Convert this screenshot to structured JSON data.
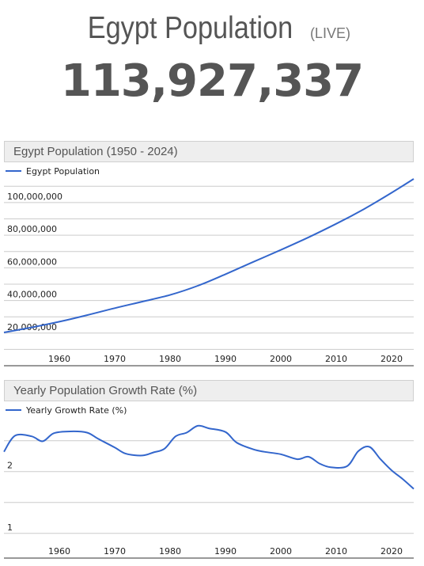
{
  "header": {
    "title": "Egypt Population",
    "live_label": "(LIVE)",
    "counter": "113,927,337"
  },
  "charts": {
    "population": {
      "heading": "Egypt Population (1950 - 2024)"
    },
    "growth": {
      "heading": "Yearly Population Growth Rate (%)"
    }
  },
  "colors": {
    "line": "#3366cc",
    "grid": "#cccccc",
    "header_bg": "#eeeeee"
  },
  "chart_data": [
    {
      "type": "line",
      "title": "Egypt Population (1950 - 2024)",
      "legend": "top-left",
      "grid": true,
      "x_tick_labels": [
        "1960",
        "1970",
        "1980",
        "1990",
        "2000",
        "2010",
        "2020"
      ],
      "y_tick_labels": [
        "20,000,000",
        "40,000,000",
        "60,000,000",
        "80,000,000",
        "100,000,000"
      ],
      "xlim": [
        1950,
        2024
      ],
      "ylim": [
        0,
        115000000
      ],
      "series": [
        {
          "name": "Egypt Population",
          "x": [
            1950,
            1955,
            1960,
            1965,
            1970,
            1975,
            1980,
            1985,
            1990,
            1995,
            2000,
            2005,
            2010,
            2015,
            2020,
            2024
          ],
          "values": [
            20400000,
            23500000,
            27000000,
            31000000,
            35300000,
            39300000,
            43400000,
            49000000,
            56100000,
            63600000,
            71000000,
            78700000,
            87000000,
            96000000,
            106000000,
            114500000
          ]
        }
      ]
    },
    {
      "type": "line",
      "title": "Yearly Population Growth Rate (%)",
      "legend": "top-left",
      "grid": true,
      "x_tick_labels": [
        "1960",
        "1970",
        "1980",
        "1990",
        "2000",
        "2010",
        "2020"
      ],
      "y_tick_labels": [
        "1",
        "2"
      ],
      "xlim": [
        1950,
        2024
      ],
      "ylim": [
        0.6,
        2.88
      ],
      "series": [
        {
          "name": "Yearly Growth Rate (%)",
          "x": [
            1950,
            1952,
            1955,
            1957,
            1959,
            1962,
            1965,
            1967,
            1970,
            1972,
            1975,
            1977,
            1979,
            1981,
            1983,
            1985,
            1987,
            1990,
            1992,
            1995,
            1997,
            2000,
            2003,
            2005,
            2007,
            2009,
            2012,
            2014,
            2016,
            2018,
            2020,
            2022,
            2024
          ],
          "values": [
            2.32,
            2.58,
            2.57,
            2.49,
            2.62,
            2.65,
            2.63,
            2.53,
            2.39,
            2.29,
            2.26,
            2.31,
            2.37,
            2.57,
            2.63,
            2.74,
            2.7,
            2.64,
            2.47,
            2.36,
            2.32,
            2.28,
            2.2,
            2.24,
            2.13,
            2.07,
            2.09,
            2.33,
            2.4,
            2.2,
            2.02,
            1.88,
            1.72
          ]
        }
      ]
    }
  ]
}
